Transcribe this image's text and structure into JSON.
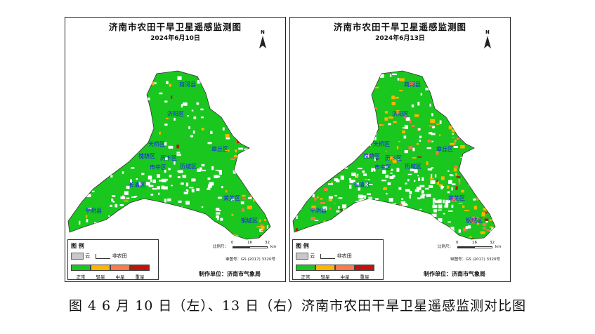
{
  "caption": "图 4  6 月 10 日（左）、13 日（右）济南市农田干旱卫星遥感监测对比图",
  "panels": [
    {
      "title": "济南市农田干旱卫星遥感监测图",
      "date": "2024年6月10日",
      "counties": [
        "商河县",
        "济阳区",
        "天桥区",
        "章丘区",
        "槐荫区",
        "历下区",
        "市中区",
        "历城区",
        "长清区",
        "莱芜区",
        "平阴县",
        "钢城区"
      ],
      "drought_level": "mostly-normal"
    },
    {
      "title": "济南市农田干旱卫星遥感监测图",
      "date": "2024年6月13日",
      "counties": [
        "商河县",
        "济阳区",
        "天桥区",
        "章丘区",
        "槐荫区",
        "历下区",
        "市中区",
        "历城区",
        "长清区",
        "莱芜区",
        "平阴县",
        "钢城区"
      ],
      "drought_level": "more-light-drought"
    }
  ],
  "legend": {
    "title": "图 例",
    "cloud": "云",
    "non_farmland": "非农田",
    "categories": [
      {
        "label": "正常",
        "color": "#19c71e"
      },
      {
        "label": "轻旱",
        "color": "#ffb400"
      },
      {
        "label": "中旱",
        "color": "#ff7a4a"
      },
      {
        "label": "重旱",
        "color": "#c0140c"
      }
    ]
  },
  "scale": {
    "label": "比例尺：",
    "ticks": [
      "0",
      "16",
      "32"
    ],
    "unit": "km"
  },
  "approval_no": "审图号：GS (2017) 3320号",
  "producer": "制作单位：济南市气象局",
  "north_label": "N",
  "colors": {
    "normal": "#19c71e",
    "light": "#ffb400",
    "moderate": "#ff7a4a",
    "severe": "#c0140c",
    "nonfarm": "#ffffff"
  }
}
